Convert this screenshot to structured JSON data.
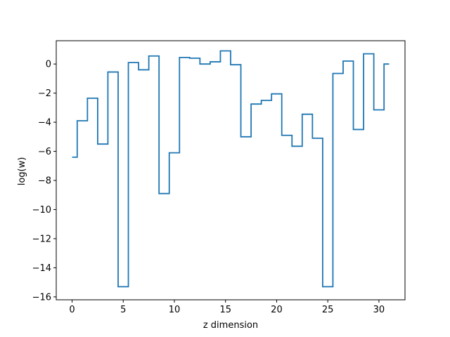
{
  "chart_data": {
    "type": "line",
    "drawstyle": "steps-mid",
    "title": "",
    "xlabel": "z dimension",
    "ylabel": "log(w)",
    "xlim": [
      -1.55,
      32.55
    ],
    "ylim": [
      -16.2,
      1.6
    ],
    "grid": false,
    "legend": "none",
    "xticks": [
      0,
      5,
      10,
      15,
      20,
      25,
      30
    ],
    "xtick_labels": [
      "0",
      "5",
      "10",
      "15",
      "20",
      "25",
      "30"
    ],
    "yticks": [
      -16,
      -14,
      -12,
      -10,
      -8,
      -6,
      -4,
      -2,
      0
    ],
    "ytick_labels": [
      "−16",
      "−14",
      "−12",
      "−10",
      "−8",
      "−6",
      "−4",
      "−2",
      "0"
    ],
    "series": [
      {
        "color": "#1f77b4",
        "x": [
          0,
          1,
          2,
          3,
          4,
          5,
          6,
          7,
          8,
          9,
          10,
          11,
          12,
          13,
          14,
          15,
          16,
          17,
          18,
          19,
          20,
          21,
          22,
          23,
          24,
          25,
          26,
          27,
          28,
          29,
          30,
          31
        ],
        "values": [
          -6.4,
          -3.9,
          -2.35,
          -5.5,
          -0.55,
          -15.3,
          0.1,
          -0.4,
          0.55,
          -8.9,
          -6.1,
          0.45,
          0.4,
          0.0,
          0.15,
          0.9,
          -0.05,
          -5.0,
          -2.75,
          -2.5,
          -2.05,
          -4.9,
          -5.65,
          -3.45,
          -5.1,
          -15.3,
          -0.65,
          0.2,
          -4.5,
          0.7,
          -3.15,
          0.0
        ]
      }
    ]
  }
}
